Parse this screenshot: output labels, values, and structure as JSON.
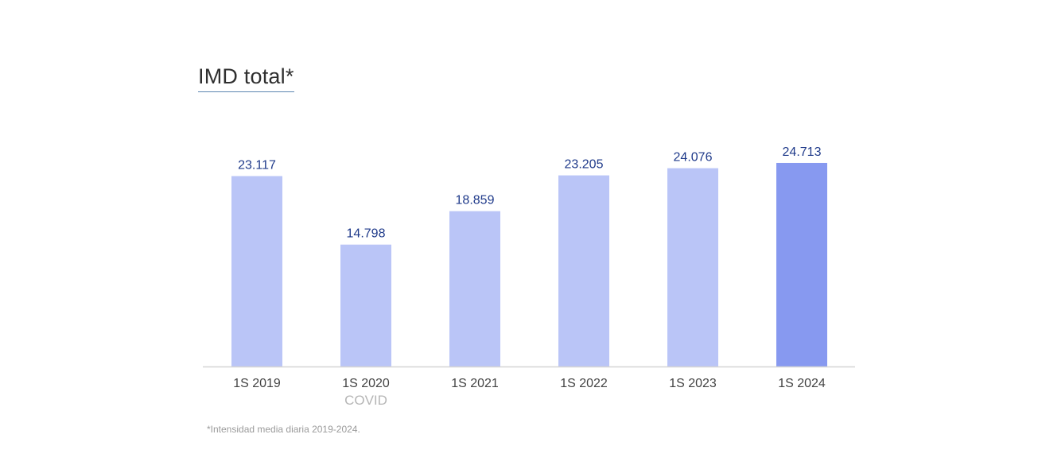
{
  "title": "IMD total*",
  "footnote": "*Intensidad media diaria 2019-2024.",
  "colors": {
    "bar": "#bac5f7",
    "bar_highlight": "#8799f0",
    "value_label": "#1f3a8a",
    "tick_label": "#444444",
    "sub_label": "#b5b5b5",
    "axis": "#d5d5d5"
  },
  "chart_data": {
    "type": "bar",
    "categories": [
      "1S 2019",
      "1S 2020",
      "1S 2021",
      "1S 2022",
      "1S 2023",
      "1S 2024"
    ],
    "sub_labels": [
      "",
      "COVID",
      "",
      "",
      "",
      ""
    ],
    "values": [
      23117,
      14798,
      18859,
      23205,
      24076,
      24713
    ],
    "value_labels": [
      "23.117",
      "14.798",
      "18.859",
      "23.205",
      "24.076",
      "24.713"
    ],
    "highlight_index": 5,
    "ylim": [
      0,
      25000
    ],
    "grid": false,
    "legend": "none"
  }
}
